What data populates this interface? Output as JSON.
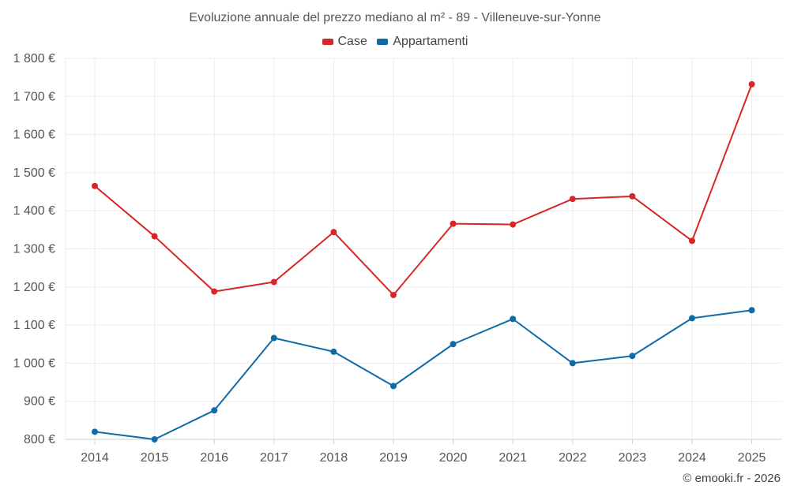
{
  "chart_data": {
    "type": "line",
    "title": "Evoluzione annuale del prezzo mediano al m² - 89 - Villeneuve-sur-Yonne",
    "xlabel": "",
    "ylabel": "",
    "categories": [
      "2014",
      "2015",
      "2016",
      "2017",
      "2018",
      "2019",
      "2020",
      "2021",
      "2022",
      "2023",
      "2024",
      "2025"
    ],
    "ylim": [
      800,
      1800
    ],
    "yticks": [
      800,
      900,
      1000,
      1100,
      1200,
      1300,
      1400,
      1500,
      1600,
      1700,
      1800
    ],
    "ytick_labels": [
      "800 €",
      "900 €",
      "1 000 €",
      "1 100 €",
      "1 200 €",
      "1 300 €",
      "1 400 €",
      "1 500 €",
      "1 600 €",
      "1 700 €",
      "1 800 €"
    ],
    "grid": true,
    "legend_position": "top-center",
    "series": [
      {
        "name": "Case",
        "color": "#d62728",
        "values": [
          1465,
          1333,
          1188,
          1213,
          1344,
          1179,
          1366,
          1364,
          1431,
          1438,
          1321,
          1732
        ]
      },
      {
        "name": "Appartamenti",
        "color": "#0e6ba8",
        "values": [
          820,
          800,
          876,
          1066,
          1030,
          940,
          1050,
          1116,
          1000,
          1019,
          1118,
          1139
        ]
      }
    ]
  },
  "footer": "© emooki.fr - 2026"
}
